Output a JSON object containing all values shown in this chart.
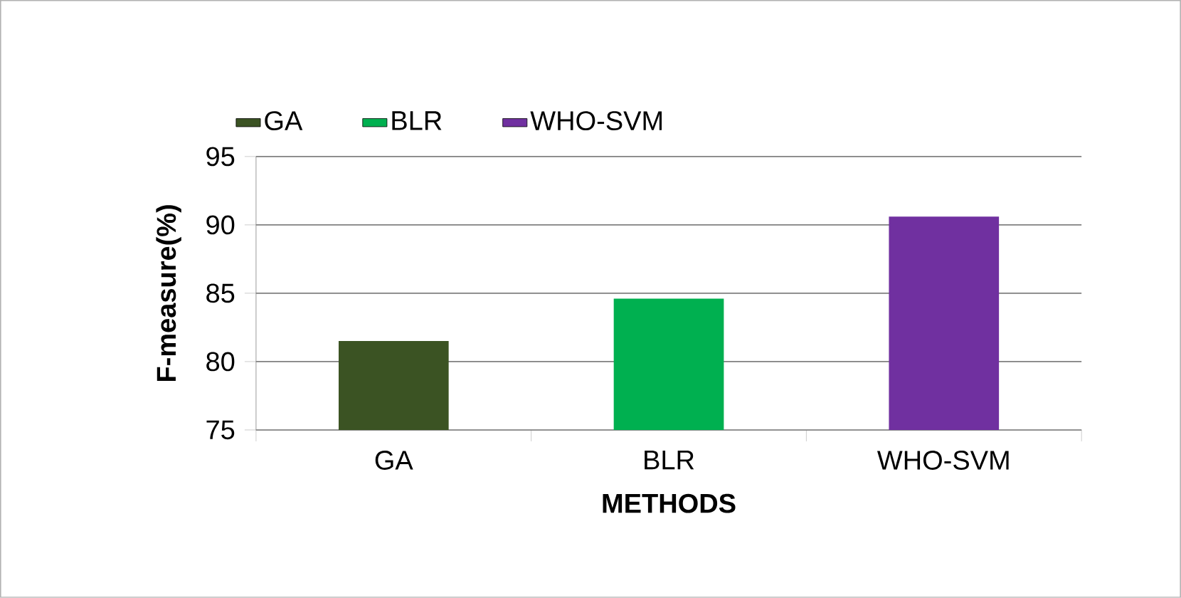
{
  "chart_data": {
    "type": "bar",
    "xlabel": "METHODS",
    "ylabel": "F-measure(%)",
    "categories": [
      "GA",
      "BLR",
      "WHO-SVM"
    ],
    "series": [
      {
        "name": "GA",
        "color": "#3b5323",
        "values": [
          81.5,
          null,
          null
        ]
      },
      {
        "name": "BLR",
        "color": "#00b050",
        "values": [
          null,
          84.6,
          null
        ]
      },
      {
        "name": "WHO-SVM",
        "color": "#7030a0",
        "values": [
          null,
          null,
          90.6
        ]
      }
    ],
    "ylim": [
      75,
      95
    ],
    "yticks": [
      75,
      80,
      85,
      90,
      95
    ],
    "grid": "y",
    "legend": "top left"
  }
}
